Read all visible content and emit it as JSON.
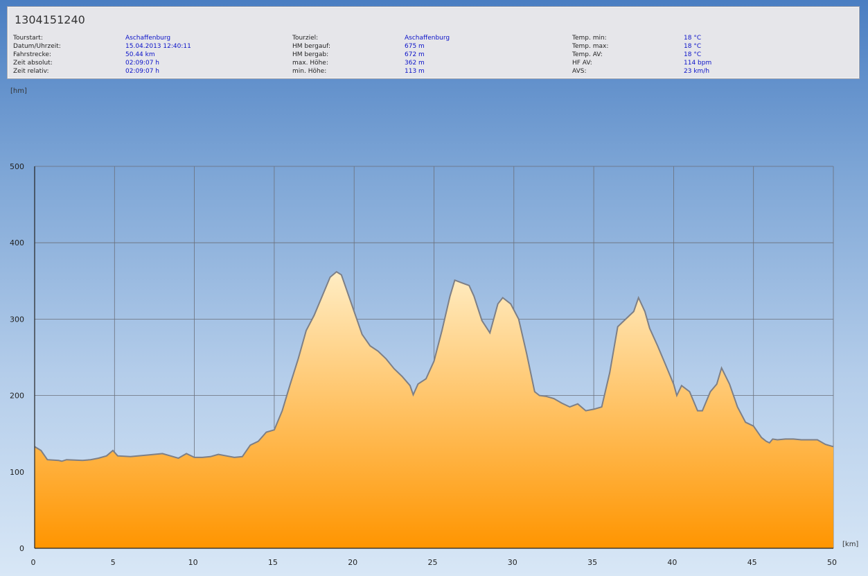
{
  "tour": {
    "title": "1304151240",
    "columns": [
      [
        {
          "label": "Tourstart:",
          "value": "Aschaffenburg"
        },
        {
          "label": "Datum/Uhrzeit:",
          "value": "15.04.2013 12:40:11"
        },
        {
          "label": "Fahrstrecke:",
          "value": "50.44 km"
        },
        {
          "label": "Zeit absolut:",
          "value": "02:09:07 h"
        },
        {
          "label": "Zeit relativ:",
          "value": "02:09:07 h"
        }
      ],
      [
        {
          "label": "Tourziel:",
          "value": "Aschaffenburg"
        },
        {
          "label": "HM bergauf:",
          "value": "675 m"
        },
        {
          "label": "HM bergab:",
          "value": "672 m"
        },
        {
          "label": "max. Höhe:",
          "value": "362 m"
        },
        {
          "label": "min. Höhe:",
          "value": "113 m"
        }
      ],
      [
        {
          "label": "Temp. min:",
          "value": "18 °C"
        },
        {
          "label": "Temp. max:",
          "value": "18 °C"
        },
        {
          "label": "Temp. AV:",
          "value": "18 °C"
        },
        {
          "label": "HF AV:",
          "value": "114 bpm"
        },
        {
          "label": "AVS:",
          "value": "23 km/h"
        }
      ]
    ]
  },
  "colors": {
    "area_top": "#ffedc4",
    "area_bottom": "#ff9500",
    "line": "#7d7f86",
    "grid": "#6a6f7a"
  },
  "chart_data": {
    "type": "area",
    "ylabel": "[hm]",
    "xlabel": "[km]",
    "xlim": [
      0,
      50
    ],
    "ylim": [
      0,
      500
    ],
    "x_ticks": [
      0,
      5,
      10,
      15,
      20,
      25,
      30,
      35,
      40,
      45,
      50
    ],
    "y_ticks": [
      0,
      100,
      200,
      300,
      400,
      500
    ],
    "grid": true,
    "series": [
      {
        "x": [
          0,
          0.4,
          0.8,
          1.5,
          1.7,
          2.0,
          3.0,
          3.5,
          4.0,
          4.5,
          4.9,
          5.2,
          6.0,
          7.0,
          8.0,
          8.5,
          9.0,
          9.5,
          10.0,
          10.5,
          11.0,
          11.5,
          12.0,
          12.5,
          13.0,
          13.5,
          14.0,
          14.5,
          15.0,
          15.5,
          16.0,
          16.5,
          17.0,
          17.5,
          18.0,
          18.5,
          18.9,
          19.2,
          19.5,
          20.0,
          20.5,
          21.0,
          21.5,
          22.0,
          22.5,
          23.0,
          23.5,
          23.7,
          24.0,
          24.5,
          25.0,
          25.5,
          26.0,
          26.3,
          26.8,
          27.2,
          27.5,
          28.0,
          28.5,
          29.0,
          29.3,
          29.8,
          30.3,
          30.8,
          31.3,
          31.6,
          32.0,
          32.5,
          33.0,
          33.5,
          34.0,
          34.5,
          35.0,
          35.5,
          36.0,
          36.5,
          37.0,
          37.5,
          37.8,
          38.2,
          38.5,
          39.0,
          39.5,
          40.0,
          40.2,
          40.5,
          41.0,
          41.2,
          41.5,
          41.8,
          42.3,
          42.7,
          43.0,
          43.5,
          44.0,
          44.5,
          45.0,
          45.5,
          45.8,
          46.0,
          46.2,
          46.5,
          47.0,
          47.5,
          48.0,
          48.5,
          49.0,
          49.5,
          50.0
        ],
        "y": [
          133,
          128,
          116,
          115,
          114,
          116,
          115,
          116,
          118,
          121,
          128,
          121,
          120,
          122,
          124,
          121,
          118,
          124,
          119,
          119,
          120,
          123,
          121,
          119,
          120,
          135,
          140,
          152,
          155,
          180,
          215,
          248,
          285,
          305,
          330,
          355,
          362,
          358,
          340,
          310,
          280,
          265,
          258,
          248,
          235,
          225,
          213,
          201,
          215,
          222,
          245,
          285,
          330,
          351,
          347,
          344,
          330,
          298,
          282,
          320,
          328,
          320,
          300,
          255,
          205,
          200,
          199,
          196,
          190,
          185,
          189,
          180,
          182,
          185,
          230,
          290,
          300,
          310,
          328,
          310,
          288,
          265,
          240,
          215,
          200,
          213,
          205,
          195,
          180,
          180,
          205,
          215,
          236,
          215,
          185,
          165,
          160,
          145,
          140,
          138,
          143,
          142,
          143,
          143,
          142,
          142,
          142,
          136,
          133
        ]
      }
    ]
  }
}
